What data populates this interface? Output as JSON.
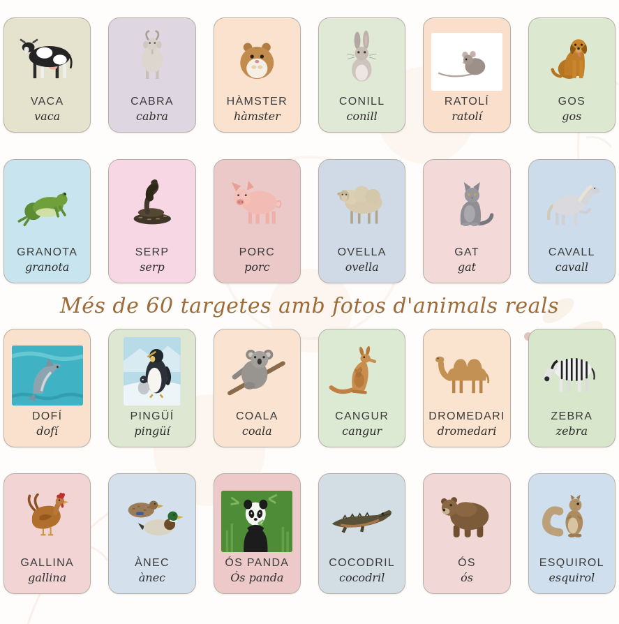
{
  "banner": {
    "text": "Més de 60 targetes amb fotos d'animals reals",
    "color": "#9c6b3a"
  },
  "style": {
    "page_background": "#fffdfb",
    "card_border": "#b5b0a8",
    "title_color": "#3b3b3b",
    "cursive_color": "#2d2d2d"
  },
  "rows": [
    {
      "name": "row-1",
      "cards": [
        {
          "id": "vaca",
          "title": "VACA",
          "cursive": "vaca",
          "bg": "#e5e2cd",
          "icon": "cow-photo"
        },
        {
          "id": "cabra",
          "title": "CABRA",
          "cursive": "cabra",
          "bg": "#ded7e1",
          "icon": "goat-photo"
        },
        {
          "id": "hamster",
          "title": "HÀMSTER",
          "cursive": "hàmster",
          "bg": "#fae2cf",
          "icon": "hamster-photo"
        },
        {
          "id": "conill",
          "title": "CONILL",
          "cursive": "conill",
          "bg": "#e0e9d5",
          "icon": "rabbit-photo"
        },
        {
          "id": "ratoli",
          "title": "RATOLÍ",
          "cursive": "ratolí",
          "bg": "#f9dfcc",
          "icon": "mouse-photo",
          "framed": true,
          "frame": "wide",
          "photo_bg": "#ffffff"
        },
        {
          "id": "gos",
          "title": "GOS",
          "cursive": "gos",
          "bg": "#dde8d1",
          "icon": "dog-photo"
        }
      ]
    },
    {
      "name": "row-2",
      "cards": [
        {
          "id": "granota",
          "title": "GRANOTA",
          "cursive": "granota",
          "bg": "#c7e4ef",
          "icon": "frog-photo"
        },
        {
          "id": "serp",
          "title": "SERP",
          "cursive": "serp",
          "bg": "#f7d7e3",
          "icon": "snake-photo"
        },
        {
          "id": "porc",
          "title": "PORC",
          "cursive": "porc",
          "bg": "#ebc9c9",
          "icon": "pig-photo"
        },
        {
          "id": "ovella",
          "title": "OVELLA",
          "cursive": "ovella",
          "bg": "#cfdae6",
          "icon": "sheep-photo"
        },
        {
          "id": "gat",
          "title": "GAT",
          "cursive": "gat",
          "bg": "#f4d9d9",
          "icon": "cat-photo"
        },
        {
          "id": "cavall",
          "title": "CAVALL",
          "cursive": "cavall",
          "bg": "#ccdcea",
          "icon": "horse-photo"
        }
      ]
    },
    {
      "name": "row-3",
      "cards": [
        {
          "id": "dofi",
          "title": "DOFÍ",
          "cursive": "dofí",
          "bg": "#f9e1ce",
          "icon": "dolphin-photo",
          "framed": true,
          "frame": "wide",
          "photo_bg": "#3fb3c4"
        },
        {
          "id": "pingui",
          "title": "PINGÜÍ",
          "cursive": "pingüí",
          "bg": "#dde7d1",
          "icon": "penguin-photo",
          "framed": true,
          "frame": "tall",
          "photo_bg": "#b8dbe8"
        },
        {
          "id": "coala",
          "title": "COALA",
          "cursive": "coala",
          "bg": "#fae3d1",
          "icon": "koala-photo"
        },
        {
          "id": "cangur",
          "title": "CANGUR",
          "cursive": "cangur",
          "bg": "#dcead3",
          "icon": "kangaroo-photo"
        },
        {
          "id": "dromedari",
          "title": "DROMEDARI",
          "cursive": "dromedari",
          "bg": "#fae3cf",
          "icon": "camel-photo"
        },
        {
          "id": "zebra",
          "title": "ZEBRA",
          "cursive": "zebra",
          "bg": "#d8e6cc",
          "icon": "zebra-photo"
        }
      ]
    },
    {
      "name": "row-4",
      "cards": [
        {
          "id": "gallina",
          "title": "GALLINA",
          "cursive": "gallina",
          "bg": "#f3d4d4",
          "icon": "hen-photo"
        },
        {
          "id": "anec",
          "title": "ÀNEC",
          "cursive": "ànec",
          "bg": "#d4e0ec",
          "icon": "ducks-photo"
        },
        {
          "id": "os-panda",
          "title": "ÓS PANDA",
          "cursive": "Ós panda",
          "bg": "#edc9c9",
          "icon": "panda-photo",
          "framed": true,
          "frame": "wide",
          "photo_bg": "#4e8c38"
        },
        {
          "id": "cocodril",
          "title": "COCODRIL",
          "cursive": "cocodril",
          "bg": "#d3dde4",
          "icon": "crocodile-photo"
        },
        {
          "id": "os",
          "title": "ÓS",
          "cursive": "ós",
          "bg": "#f2d7d7",
          "icon": "bear-photo"
        },
        {
          "id": "esquirol",
          "title": "ESQUIROL",
          "cursive": "esquirol",
          "bg": "#cfdfee",
          "icon": "squirrel-photo"
        }
      ]
    }
  ]
}
